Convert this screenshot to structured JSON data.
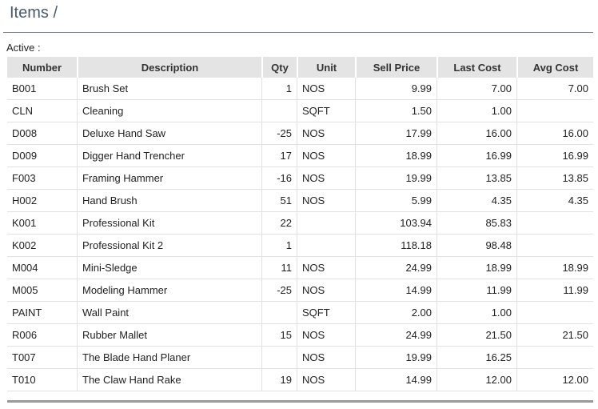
{
  "page": {
    "title": "Items /"
  },
  "section": {
    "label": "Active :"
  },
  "table": {
    "headers": {
      "number": "Number",
      "description": "Description",
      "qty": "Qty",
      "unit": "Unit",
      "sell_price": "Sell Price",
      "last_cost": "Last Cost",
      "avg_cost": "Avg Cost"
    },
    "rows": [
      {
        "number": "B001",
        "description": "Brush Set",
        "qty": "1",
        "unit": "NOS",
        "sell_price": "9.99",
        "last_cost": "7.00",
        "avg_cost": "7.00"
      },
      {
        "number": "CLN",
        "description": "Cleaning",
        "qty": "",
        "unit": "SQFT",
        "sell_price": "1.50",
        "last_cost": "1.00",
        "avg_cost": ""
      },
      {
        "number": "D008",
        "description": "Deluxe Hand Saw",
        "qty": "-25",
        "unit": "NOS",
        "sell_price": "17.99",
        "last_cost": "16.00",
        "avg_cost": "16.00"
      },
      {
        "number": "D009",
        "description": "Digger Hand Trencher",
        "qty": "17",
        "unit": "NOS",
        "sell_price": "18.99",
        "last_cost": "16.99",
        "avg_cost": "16.99"
      },
      {
        "number": "F003",
        "description": "Framing Hammer",
        "qty": "-16",
        "unit": "NOS",
        "sell_price": "19.99",
        "last_cost": "13.85",
        "avg_cost": "13.85"
      },
      {
        "number": "H002",
        "description": "Hand Brush",
        "qty": "51",
        "unit": "NOS",
        "sell_price": "5.99",
        "last_cost": "4.35",
        "avg_cost": "4.35"
      },
      {
        "number": "K001",
        "description": "Professional Kit",
        "qty": "22",
        "unit": "",
        "sell_price": "103.94",
        "last_cost": "85.83",
        "avg_cost": ""
      },
      {
        "number": "K002",
        "description": "Professional Kit 2",
        "qty": "1",
        "unit": "",
        "sell_price": "118.18",
        "last_cost": "98.48",
        "avg_cost": ""
      },
      {
        "number": "M004",
        "description": "Mini-Sledge",
        "qty": "11",
        "unit": "NOS",
        "sell_price": "24.99",
        "last_cost": "18.99",
        "avg_cost": "18.99"
      },
      {
        "number": "M005",
        "description": "Modeling Hammer",
        "qty": "-25",
        "unit": "NOS",
        "sell_price": "14.99",
        "last_cost": "11.99",
        "avg_cost": "11.99"
      },
      {
        "number": "PAINT",
        "description": "Wall Paint",
        "qty": "",
        "unit": "SQFT",
        "sell_price": "2.00",
        "last_cost": "1.00",
        "avg_cost": ""
      },
      {
        "number": "R006",
        "description": "Rubber Mallet",
        "qty": "15",
        "unit": "NOS",
        "sell_price": "24.99",
        "last_cost": "21.50",
        "avg_cost": "21.50"
      },
      {
        "number": "T007",
        "description": "The Blade Hand Planer",
        "qty": "",
        "unit": "NOS",
        "sell_price": "19.99",
        "last_cost": "16.25",
        "avg_cost": ""
      },
      {
        "number": "T010",
        "description": "The Claw Hand Rake",
        "qty": "19",
        "unit": "NOS",
        "sell_price": "14.99",
        "last_cost": "12.00",
        "avg_cost": "12.00"
      }
    ]
  },
  "colors": {
    "link": "#1a8fc0",
    "header_bg": "#e4e4e4",
    "title": "#4a5a6a"
  }
}
